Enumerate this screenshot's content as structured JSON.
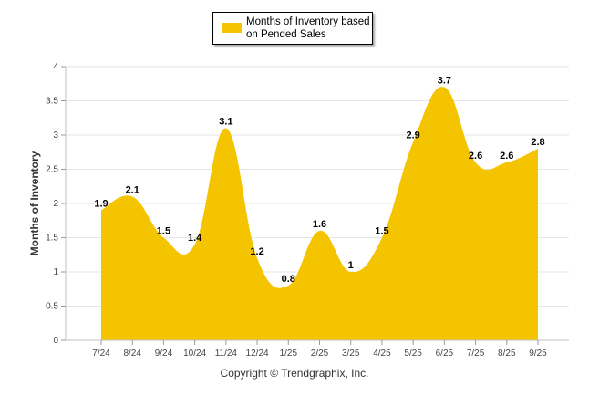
{
  "chart_data": {
    "type": "area",
    "categories": [
      "7/24",
      "8/24",
      "9/24",
      "10/24",
      "11/24",
      "12/24",
      "1/25",
      "2/25",
      "3/25",
      "4/25",
      "5/25",
      "6/25",
      "7/25",
      "8/25",
      "9/25"
    ],
    "series": [
      {
        "name": "Months of Inventory based on Pended Sales",
        "values": [
          1.9,
          2.1,
          1.5,
          1.4,
          3.1,
          1.2,
          0.8,
          1.6,
          1.0,
          1.5,
          2.9,
          3.7,
          2.6,
          2.6,
          2.8
        ],
        "data_labels": [
          "1.9",
          "2.1",
          "1.5",
          "1.4",
          "3.1",
          "1.2",
          "0.8",
          "1.6",
          "1",
          "1.5",
          "2.9",
          "3.7",
          "2.6",
          "2.6",
          "2.8"
        ],
        "color": "#f5c400"
      }
    ],
    "ylabel": "Months of Inventory",
    "xlabel": "",
    "ylim": [
      0,
      4
    ],
    "yticks": [
      "0",
      "0.5",
      "1",
      "1.5",
      "2",
      "2.5",
      "3",
      "3.5",
      "4"
    ],
    "grid": true,
    "legend_position": "top-center"
  },
  "legend": {
    "label": "Months of Inventory based on Pended Sales",
    "color": "#f5c400"
  },
  "footer": {
    "copyright": "Copyright © Trendgraphix, Inc."
  }
}
